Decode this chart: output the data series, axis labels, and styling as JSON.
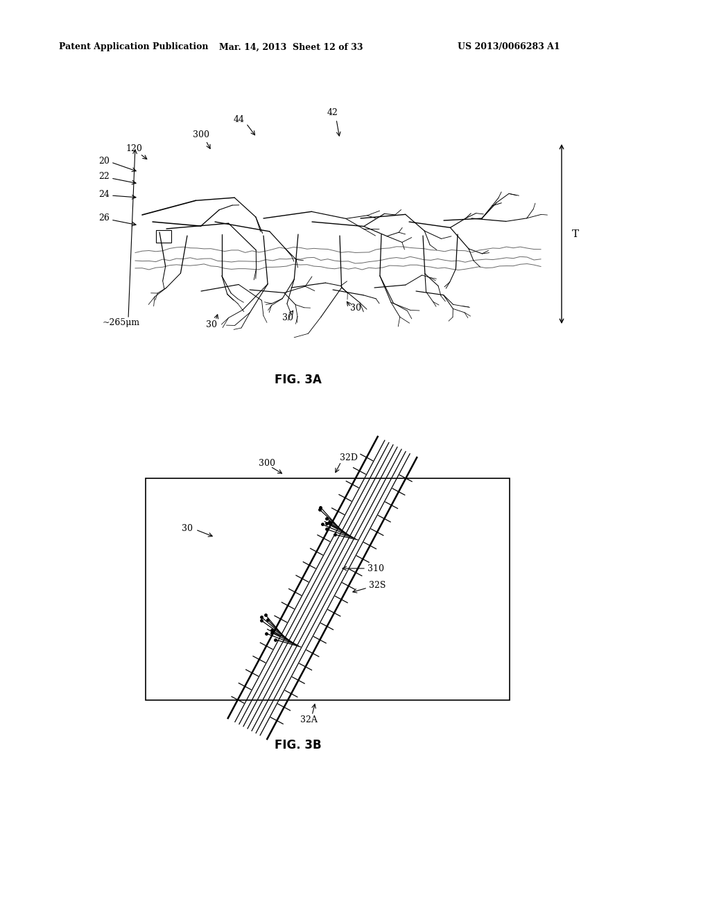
{
  "bg_color": "#ffffff",
  "header_left": "Patent Application Publication",
  "header_mid": "Mar. 14, 2013  Sheet 12 of 33",
  "header_right": "US 2013/0066283 A1",
  "fig3a_caption": "FIG. 3A",
  "fig3b_caption": "FIG. 3B"
}
